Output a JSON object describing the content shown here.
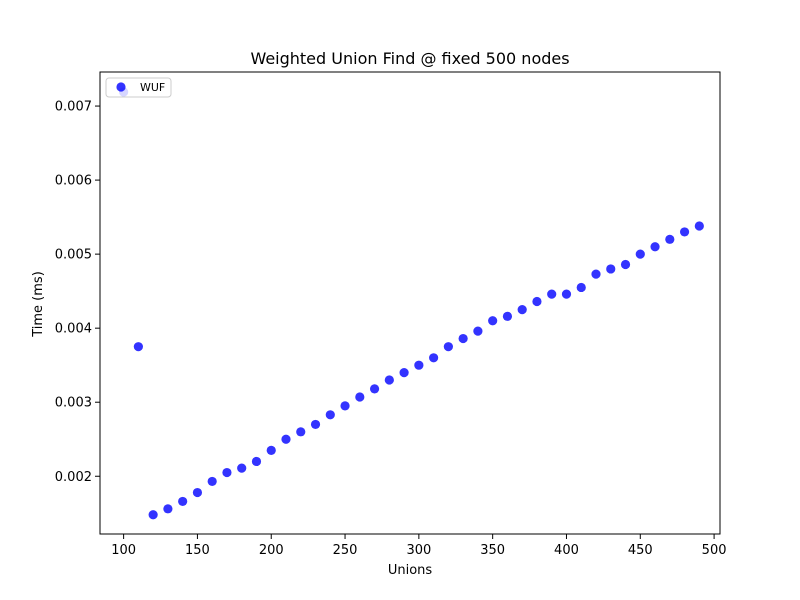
{
  "chart_data": {
    "type": "scatter",
    "title": "Weighted Union Find @ fixed 500 nodes",
    "xlabel": "Unions",
    "ylabel": "Time (ms)",
    "xlim": [
      84,
      504
    ],
    "ylim": [
      0.00122,
      0.00746
    ],
    "xticks": [
      100,
      150,
      200,
      250,
      300,
      350,
      400,
      450,
      500
    ],
    "xtick_labels": [
      "100",
      "150",
      "200",
      "250",
      "300",
      "350",
      "400",
      "450",
      "500"
    ],
    "yticks": [
      0.002,
      0.003,
      0.004,
      0.005,
      0.006,
      0.007
    ],
    "ytick_labels": [
      "0.002",
      "0.003",
      "0.004",
      "0.005",
      "0.006",
      "0.007"
    ],
    "grid": false,
    "legend_position": "upper-left",
    "series": [
      {
        "name": "WUF",
        "color": "#0000ff",
        "x": [
          100,
          110,
          120,
          130,
          140,
          150,
          160,
          170,
          180,
          190,
          200,
          210,
          220,
          230,
          240,
          250,
          260,
          270,
          280,
          290,
          300,
          310,
          320,
          330,
          340,
          350,
          360,
          370,
          380,
          390,
          400,
          410,
          420,
          430,
          440,
          450,
          460,
          470,
          480,
          490
        ],
        "y": [
          0.00719,
          0.00375,
          0.00148,
          0.00156,
          0.00166,
          0.00178,
          0.00193,
          0.00205,
          0.00211,
          0.0022,
          0.00235,
          0.0025,
          0.0026,
          0.0027,
          0.00283,
          0.00295,
          0.00307,
          0.00318,
          0.0033,
          0.0034,
          0.0035,
          0.0036,
          0.00375,
          0.00386,
          0.00396,
          0.0041,
          0.00416,
          0.00425,
          0.00436,
          0.00446,
          0.00446,
          0.00455,
          0.00473,
          0.0048,
          0.00486,
          0.005,
          0.0051,
          0.0052,
          0.0053,
          0.00538
        ]
      }
    ]
  }
}
